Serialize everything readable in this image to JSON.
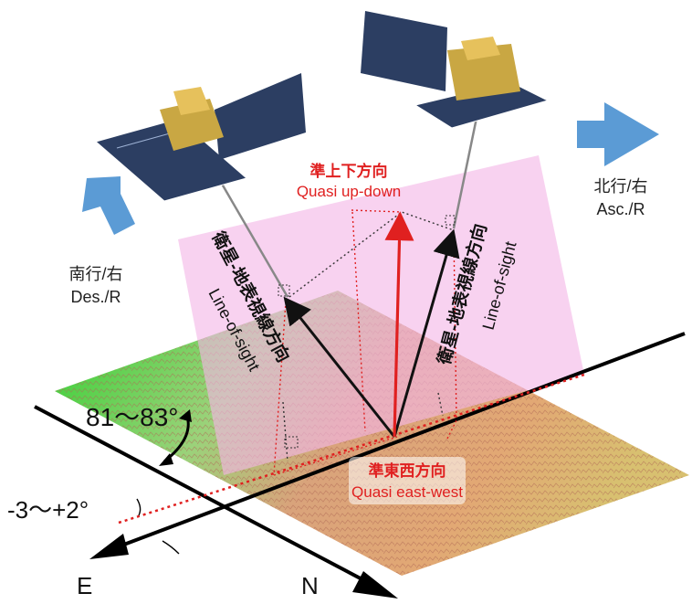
{
  "labels": {
    "descending": "南行/右",
    "descending_en": "Des./R",
    "ascending": "北行/右",
    "ascending_en": "Asc./R",
    "updown": "準上下方向",
    "updown_en": "Quasi up-down",
    "eastwest": "準東西方向",
    "eastwest_en": "Quasi east-west",
    "los_jp": "衛星-地表視線方向",
    "los_en": "Line-of-sight",
    "angle_orbit": "81～83°",
    "angle_tilt": "-3～+2°",
    "axis_e": "E",
    "axis_n": "N"
  },
  "colors": {
    "arrow_blue": "#5b9bd5",
    "pink_plane": "#f4b6e6",
    "red": "#e03030",
    "terrain_green": "#55d555",
    "terrain_orange": "#d99a6a"
  }
}
